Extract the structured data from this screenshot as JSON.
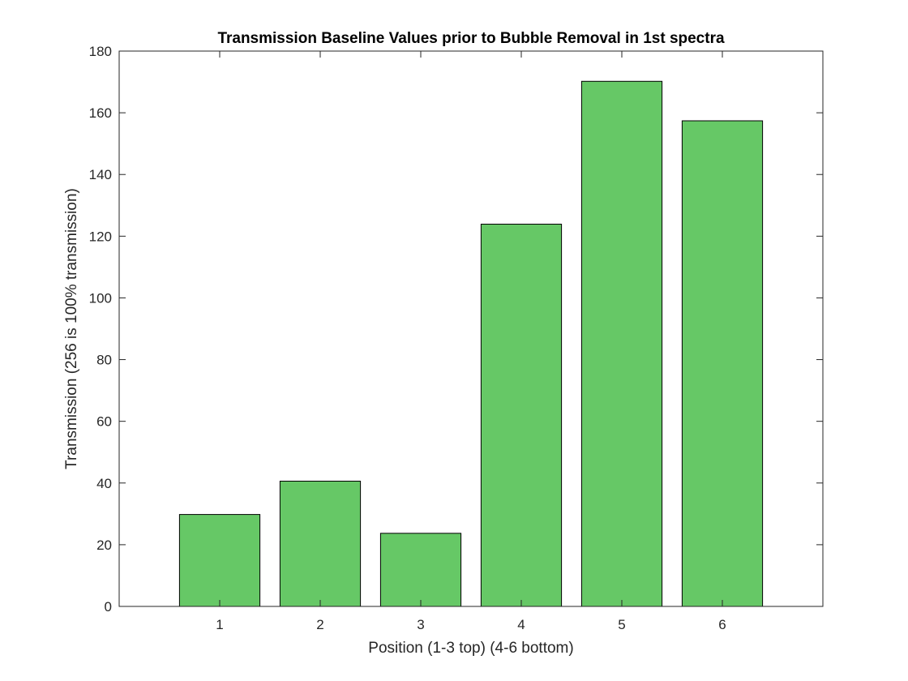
{
  "chart_data": {
    "type": "bar",
    "title": "Transmission Baseline Values prior to Bubble Removal in 1st spectra",
    "xlabel": "Position (1-3 top) (4-6 bottom)",
    "ylabel": "Transmission (256 is 100% transmission)",
    "categories": [
      "1",
      "2",
      "3",
      "4",
      "5",
      "6"
    ],
    "values": [
      29.8,
      40.6,
      23.7,
      123.9,
      170.2,
      157.4
    ],
    "ylim": [
      0,
      180
    ],
    "yticks": [
      0,
      20,
      40,
      60,
      80,
      100,
      120,
      140,
      160,
      180
    ],
    "xlim": [
      0,
      7
    ],
    "grid": false,
    "legend": "none",
    "bar_color": "#66c866",
    "bar_edge_color": "#000000",
    "axis_color": "#262626"
  }
}
